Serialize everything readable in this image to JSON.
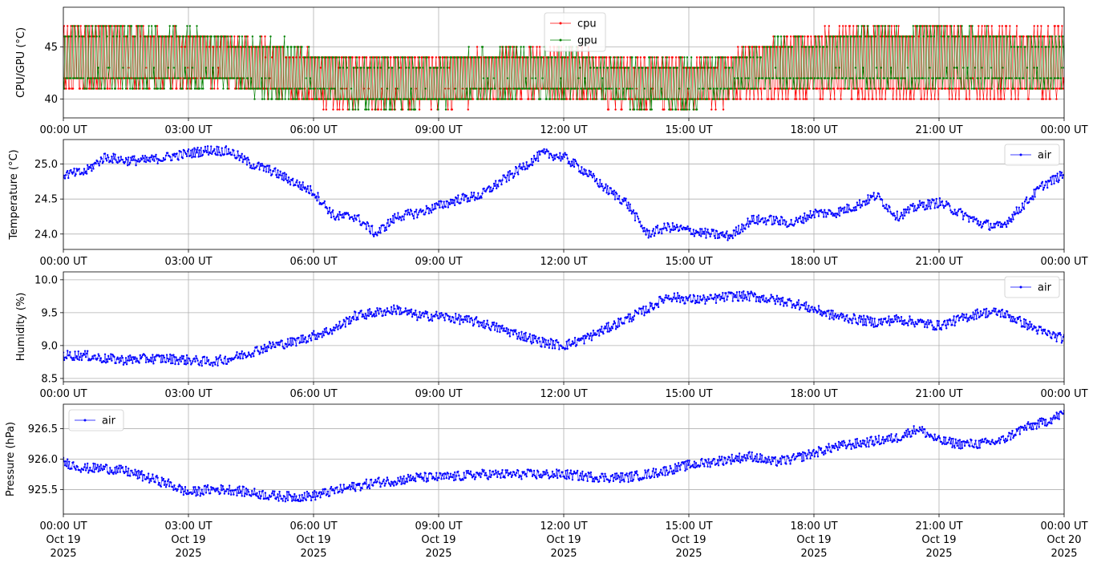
{
  "figure": {
    "background": "#ffffff",
    "grid_color": "#b0b0b0",
    "x_ticks": [
      "00:00 UT",
      "03:00 UT",
      "06:00 UT",
      "09:00 UT",
      "12:00 UT",
      "15:00 UT",
      "18:00 UT",
      "21:00 UT",
      "00:00 UT"
    ],
    "x_date_line1": [
      "Oct 19",
      "Oct 19",
      "Oct 19",
      "Oct 19",
      "Oct 19",
      "Oct 19",
      "Oct 19",
      "Oct 19",
      "Oct 20"
    ],
    "x_date_line2": [
      "2025",
      "2025",
      "2025",
      "2025",
      "2025",
      "2025",
      "2025",
      "2025",
      "2025"
    ]
  },
  "chart_data": [
    {
      "type": "line",
      "ylabel": "CPU/GPU (°C)",
      "ylim": [
        38.2,
        48.8
      ],
      "yticks": [
        40,
        45
      ],
      "ytick_labels": [
        "40",
        "45"
      ],
      "x_range": [
        "2025-10-19 00:00 UT",
        "2025-10-20 00:00 UT"
      ],
      "grid": true,
      "legend_position": "upper center",
      "series": [
        {
          "name": "cpu",
          "color": "#ff0000",
          "x": [
            "00:00",
            "01:00",
            "02:00",
            "03:00",
            "04:00",
            "05:00",
            "06:00",
            "07:00",
            "08:00",
            "09:00",
            "10:00",
            "11:00",
            "12:00",
            "13:00",
            "14:00",
            "15:00",
            "16:00",
            "17:00",
            "18:00",
            "19:00",
            "20:00",
            "21:00",
            "22:00",
            "23:00",
            "24:00"
          ],
          "values_low": [
            40.0,
            41.0,
            41.0,
            41.0,
            41.0,
            40.0,
            39.5,
            39.0,
            39.0,
            39.0,
            39.5,
            40.0,
            40.0,
            39.5,
            39.0,
            39.0,
            39.5,
            40.0,
            40.0,
            40.0,
            40.0,
            40.0,
            40.0,
            40.0,
            40.0
          ],
          "values_high": [
            47.0,
            47.5,
            47.0,
            46.5,
            46.5,
            45.5,
            44.5,
            44.5,
            44.5,
            44.5,
            45.0,
            45.0,
            45.0,
            44.5,
            44.0,
            44.0,
            44.5,
            46.0,
            46.5,
            47.0,
            47.0,
            47.0,
            47.0,
            47.0,
            47.0
          ]
        },
        {
          "name": "gpu",
          "color": "#008000",
          "x": [
            "00:00",
            "01:00",
            "02:00",
            "03:00",
            "04:00",
            "05:00",
            "06:00",
            "07:00",
            "08:00",
            "09:00",
            "10:00",
            "11:00",
            "12:00",
            "13:00",
            "14:00",
            "15:00",
            "16:00",
            "17:00",
            "18:00",
            "19:00",
            "20:00",
            "21:00",
            "22:00",
            "23:00",
            "24:00"
          ],
          "values_low": [
            41.0,
            41.0,
            41.0,
            41.0,
            41.0,
            40.0,
            40.0,
            39.0,
            39.0,
            39.0,
            40.0,
            40.0,
            40.0,
            40.0,
            39.0,
            39.0,
            40.0,
            41.0,
            41.0,
            41.0,
            41.0,
            41.0,
            41.0,
            41.0,
            41.0
          ],
          "values_high": [
            47.0,
            47.0,
            47.0,
            47.0,
            46.0,
            46.0,
            45.0,
            44.0,
            44.0,
            44.0,
            45.0,
            45.0,
            45.0,
            44.0,
            44.0,
            44.0,
            44.0,
            46.0,
            46.0,
            47.0,
            47.0,
            47.0,
            47.0,
            46.0,
            46.0
          ]
        }
      ]
    },
    {
      "type": "line",
      "ylabel": "Temperature (°C)",
      "ylim": [
        23.78,
        25.35
      ],
      "yticks": [
        24.0,
        24.5,
        25.0
      ],
      "ytick_labels": [
        "24.0",
        "24.5",
        "25.0"
      ],
      "x_range": [
        "2025-10-19 00:00 UT",
        "2025-10-20 00:00 UT"
      ],
      "grid": true,
      "legend_position": "upper right",
      "series": [
        {
          "name": "air",
          "color": "#0000ff",
          "x": [
            "00:00",
            "00:30",
            "01:00",
            "01:30",
            "02:00",
            "02:30",
            "03:00",
            "03:30",
            "04:00",
            "04:30",
            "05:00",
            "05:30",
            "06:00",
            "06:30",
            "07:00",
            "07:30",
            "08:00",
            "08:30",
            "09:00",
            "09:30",
            "10:00",
            "10:30",
            "11:00",
            "11:30",
            "12:00",
            "12:30",
            "13:00",
            "13:30",
            "14:00",
            "14:30",
            "15:00",
            "15:30",
            "16:00",
            "16:30",
            "17:00",
            "17:30",
            "18:00",
            "18:30",
            "19:00",
            "19:30",
            "20:00",
            "20:30",
            "21:00",
            "21:30",
            "22:00",
            "22:30",
            "23:00",
            "23:30",
            "24:00"
          ],
          "values": [
            24.85,
            24.88,
            25.1,
            25.05,
            25.05,
            25.1,
            25.15,
            25.2,
            25.18,
            25.0,
            24.9,
            24.75,
            24.6,
            24.25,
            24.25,
            24.0,
            24.25,
            24.3,
            24.4,
            24.5,
            24.55,
            24.75,
            24.95,
            25.15,
            25.1,
            24.9,
            24.65,
            24.45,
            24.0,
            24.1,
            24.05,
            24.0,
            23.97,
            24.2,
            24.2,
            24.15,
            24.3,
            24.3,
            24.4,
            24.55,
            24.25,
            24.4,
            24.45,
            24.3,
            24.15,
            24.1,
            24.4,
            24.7,
            24.85
          ]
        }
      ]
    },
    {
      "type": "line",
      "ylabel": "Humidity (%)",
      "ylim": [
        8.45,
        10.12
      ],
      "yticks": [
        8.5,
        9.0,
        9.5,
        10.0
      ],
      "ytick_labels": [
        "8.5",
        "9.0",
        "9.5",
        "10.0"
      ],
      "x_range": [
        "2025-10-19 00:00 UT",
        "2025-10-20 00:00 UT"
      ],
      "grid": true,
      "legend_position": "upper right",
      "series": [
        {
          "name": "air",
          "color": "#0000ff",
          "x": [
            "00:00",
            "00:30",
            "01:00",
            "01:30",
            "02:00",
            "02:30",
            "03:00",
            "03:30",
            "04:00",
            "04:30",
            "05:00",
            "05:30",
            "06:00",
            "06:30",
            "07:00",
            "07:30",
            "08:00",
            "08:30",
            "09:00",
            "09:30",
            "10:00",
            "10:30",
            "11:00",
            "11:30",
            "12:00",
            "12:30",
            "13:00",
            "13:30",
            "14:00",
            "14:30",
            "15:00",
            "15:30",
            "16:00",
            "16:30",
            "17:00",
            "17:30",
            "18:00",
            "18:30",
            "19:00",
            "19:30",
            "20:00",
            "20:30",
            "21:00",
            "21:30",
            "22:00",
            "22:30",
            "23:00",
            "23:30",
            "24:00"
          ],
          "values": [
            8.85,
            8.85,
            8.8,
            8.78,
            8.8,
            8.8,
            8.78,
            8.75,
            8.8,
            8.9,
            9.0,
            9.05,
            9.15,
            9.25,
            9.45,
            9.5,
            9.55,
            9.45,
            9.45,
            9.4,
            9.35,
            9.25,
            9.15,
            9.05,
            9.0,
            9.1,
            9.25,
            9.4,
            9.55,
            9.75,
            9.7,
            9.7,
            9.75,
            9.75,
            9.7,
            9.65,
            9.55,
            9.45,
            9.4,
            9.35,
            9.4,
            9.35,
            9.3,
            9.4,
            9.5,
            9.5,
            9.35,
            9.2,
            9.1
          ]
        }
      ]
    },
    {
      "type": "line",
      "ylabel": "Pressure (hPa)",
      "ylim": [
        925.1,
        926.9
      ],
      "yticks": [
        925.5,
        926.0,
        926.5
      ],
      "ytick_labels": [
        "925.5",
        "926.0",
        "926.5"
      ],
      "x_range": [
        "2025-10-19 00:00 UT",
        "2025-10-20 00:00 UT"
      ],
      "grid": true,
      "legend_position": "upper left",
      "series": [
        {
          "name": "air",
          "color": "#0000ff",
          "x": [
            "00:00",
            "00:30",
            "01:00",
            "01:30",
            "02:00",
            "02:30",
            "03:00",
            "03:30",
            "04:00",
            "04:30",
            "05:00",
            "05:30",
            "06:00",
            "06:30",
            "07:00",
            "07:30",
            "08:00",
            "08:30",
            "09:00",
            "09:30",
            "10:00",
            "10:30",
            "11:00",
            "11:30",
            "12:00",
            "12:30",
            "13:00",
            "13:30",
            "14:00",
            "14:30",
            "15:00",
            "15:30",
            "16:00",
            "16:30",
            "17:00",
            "17:30",
            "18:00",
            "18:30",
            "19:00",
            "19:30",
            "20:00",
            "20:30",
            "21:00",
            "21:30",
            "22:00",
            "22:30",
            "23:00",
            "23:30",
            "24:00"
          ],
          "values": [
            925.95,
            925.85,
            925.85,
            925.8,
            925.7,
            925.6,
            925.45,
            925.5,
            925.5,
            925.45,
            925.4,
            925.38,
            925.4,
            925.48,
            925.55,
            925.62,
            925.65,
            925.7,
            925.7,
            925.72,
            925.75,
            925.75,
            925.75,
            925.75,
            925.75,
            925.72,
            925.7,
            925.7,
            925.75,
            925.82,
            925.9,
            925.95,
            926.0,
            926.05,
            925.95,
            926.0,
            926.1,
            926.2,
            926.25,
            926.3,
            926.35,
            926.5,
            926.3,
            926.25,
            926.25,
            926.3,
            926.5,
            926.6,
            926.75
          ]
        }
      ]
    }
  ]
}
